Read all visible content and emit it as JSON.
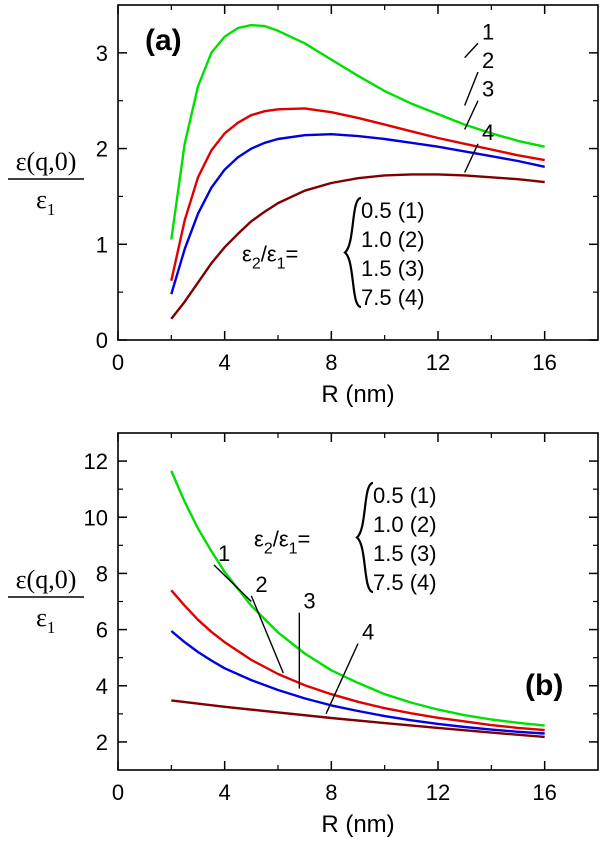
{
  "chart_data": [
    {
      "type": "line",
      "panel_label": "(a)",
      "xlabel": "R (nm)",
      "ylabel_num": "ε(q,0)",
      "ylabel_den": "ε",
      "ylabel_den_sub": "1",
      "xlim": [
        0,
        18
      ],
      "ylim": [
        0,
        3.5
      ],
      "xticks": [
        0,
        4,
        8,
        12,
        16
      ],
      "yticks": [
        0,
        1,
        2,
        3
      ],
      "legend": {
        "lhs_a": "ε",
        "lhs_a_sub": "2",
        "slash": "/",
        "lhs_b": "ε",
        "lhs_b_sub": "1",
        "eq": "=",
        "entries": [
          "0.5 (1)",
          "1.0 (2)",
          "1.5 (3)",
          "7.5 (4)"
        ]
      },
      "series": [
        {
          "curve_label": "1",
          "color": "#00e000",
          "x": [
            2,
            2.5,
            3,
            3.5,
            4,
            4.5,
            5,
            5.5,
            6,
            7,
            8,
            9,
            10,
            11,
            12,
            13,
            14,
            15,
            16
          ],
          "y": [
            1.05,
            2.05,
            2.65,
            3.0,
            3.17,
            3.26,
            3.29,
            3.28,
            3.23,
            3.1,
            2.93,
            2.76,
            2.6,
            2.47,
            2.36,
            2.25,
            2.16,
            2.08,
            2.02
          ],
          "label_pos": [
            13.0,
            2.95
          ],
          "label_text_pos": [
            13.5,
            3.1
          ]
        },
        {
          "curve_label": "2",
          "color": "#e00000",
          "x": [
            2,
            2.5,
            3,
            3.5,
            4,
            4.5,
            5,
            5.5,
            6,
            7,
            8,
            9,
            10,
            11,
            12,
            13,
            14,
            15,
            16
          ],
          "y": [
            0.62,
            1.25,
            1.7,
            1.98,
            2.16,
            2.27,
            2.35,
            2.39,
            2.41,
            2.42,
            2.38,
            2.32,
            2.25,
            2.18,
            2.11,
            2.05,
            1.99,
            1.93,
            1.88
          ],
          "label_pos": [
            13.0,
            2.45
          ],
          "label_text_pos": [
            13.5,
            2.8
          ]
        },
        {
          "curve_label": "3",
          "color": "#0000e0",
          "x": [
            2,
            2.5,
            3,
            3.5,
            4,
            4.5,
            5,
            5.5,
            6,
            7,
            8,
            9,
            10,
            11,
            12,
            13,
            14,
            15,
            16
          ],
          "y": [
            0.48,
            0.95,
            1.32,
            1.59,
            1.78,
            1.91,
            2.0,
            2.06,
            2.1,
            2.14,
            2.15,
            2.13,
            2.1,
            2.06,
            2.02,
            1.97,
            1.92,
            1.87,
            1.81
          ],
          "label_pos": [
            13.0,
            2.2
          ],
          "label_text_pos": [
            13.5,
            2.5
          ]
        },
        {
          "curve_label": "4",
          "color": "#800000",
          "x": [
            2,
            2.5,
            3,
            3.5,
            4,
            4.5,
            5,
            5.5,
            6,
            7,
            8,
            9,
            10,
            11,
            12,
            13,
            14,
            15,
            16
          ],
          "y": [
            0.22,
            0.4,
            0.6,
            0.8,
            0.97,
            1.11,
            1.24,
            1.34,
            1.43,
            1.56,
            1.64,
            1.69,
            1.72,
            1.73,
            1.73,
            1.72,
            1.7,
            1.68,
            1.65
          ],
          "label_pos": [
            13.0,
            1.75
          ],
          "label_text_pos": [
            13.5,
            2.05
          ]
        }
      ]
    },
    {
      "type": "line",
      "panel_label": "(b)",
      "xlabel": "R (nm)",
      "ylabel_num": "ε(q,0)",
      "ylabel_den": "ε",
      "ylabel_den_sub": "1",
      "xlim": [
        0,
        18
      ],
      "ylim": [
        1,
        13
      ],
      "xticks": [
        0,
        4,
        8,
        12,
        16
      ],
      "yticks": [
        2,
        4,
        6,
        8,
        10,
        12
      ],
      "legend": {
        "lhs_a": "ε",
        "lhs_a_sub": "2",
        "slash": "/",
        "lhs_b": "ε",
        "lhs_b_sub": "1",
        "eq": "=",
        "entries": [
          "0.5 (1)",
          "1.0 (2)",
          "1.5 (3)",
          "7.5 (4)"
        ]
      },
      "series": [
        {
          "curve_label": "1",
          "color": "#00e000",
          "x": [
            2,
            2.5,
            3,
            3.5,
            4,
            5,
            6,
            7,
            8,
            9,
            10,
            11,
            12,
            13,
            14,
            15,
            16
          ],
          "y": [
            11.65,
            10.55,
            9.6,
            8.8,
            8.05,
            6.85,
            5.9,
            5.15,
            4.55,
            4.1,
            3.7,
            3.4,
            3.15,
            2.95,
            2.8,
            2.68,
            2.58
          ],
          "label_pos": [
            5.0,
            7.0
          ],
          "label_text_pos": [
            3.6,
            8.3
          ]
        },
        {
          "curve_label": "2",
          "color": "#e00000",
          "x": [
            2,
            2.5,
            3,
            3.5,
            4,
            5,
            6,
            7,
            8,
            9,
            10,
            11,
            12,
            13,
            14,
            15,
            16
          ],
          "y": [
            7.4,
            6.85,
            6.35,
            5.92,
            5.55,
            4.92,
            4.42,
            4.02,
            3.7,
            3.43,
            3.2,
            3.02,
            2.86,
            2.73,
            2.6,
            2.5,
            2.42
          ],
          "label_pos": [
            6.2,
            4.45
          ],
          "label_text_pos": [
            5.0,
            7.2
          ]
        },
        {
          "curve_label": "3",
          "color": "#0000e0",
          "x": [
            2,
            2.5,
            3,
            3.5,
            4,
            5,
            6,
            7,
            8,
            9,
            10,
            11,
            12,
            13,
            14,
            15,
            16
          ],
          "y": [
            5.95,
            5.55,
            5.2,
            4.9,
            4.62,
            4.2,
            3.85,
            3.55,
            3.3,
            3.1,
            2.92,
            2.77,
            2.64,
            2.53,
            2.44,
            2.36,
            2.3
          ],
          "label_pos": [
            6.8,
            3.9
          ],
          "label_text_pos": [
            6.8,
            6.6
          ]
        },
        {
          "curve_label": "4",
          "color": "#800000",
          "x": [
            2,
            4,
            6,
            8,
            10,
            12,
            14,
            16
          ],
          "y": [
            3.48,
            3.25,
            3.05,
            2.85,
            2.67,
            2.5,
            2.33,
            2.18
          ],
          "label_pos": [
            7.8,
            3.0
          ],
          "label_text_pos": [
            9.0,
            5.5
          ]
        }
      ]
    }
  ]
}
